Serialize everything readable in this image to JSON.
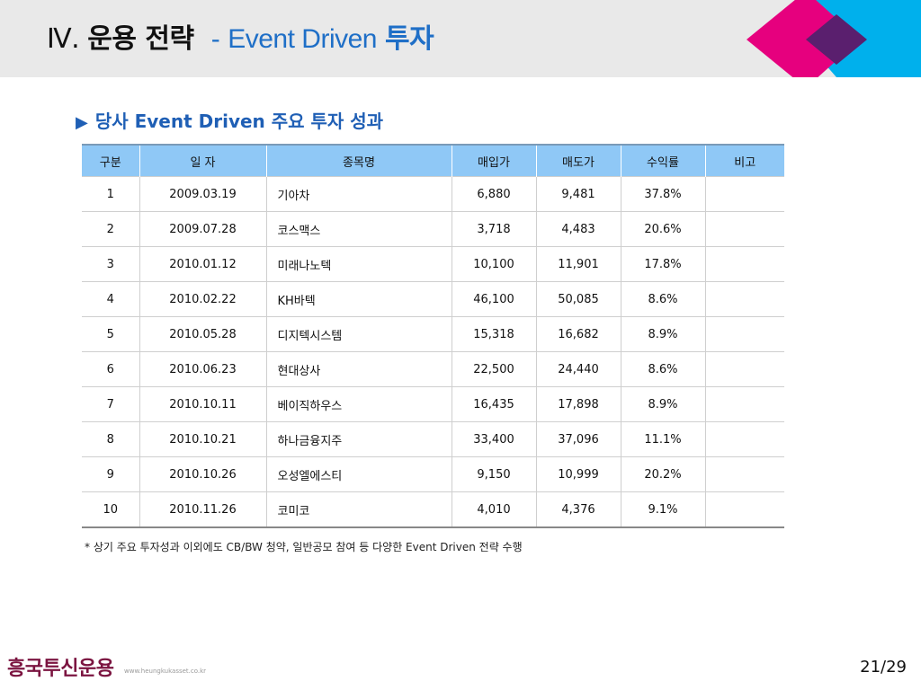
{
  "header": {
    "roman": "Ⅳ.",
    "title_ko": "운용 전략",
    "dash": "-",
    "title_en": "Event Driven",
    "title_ko2": "투자"
  },
  "section": {
    "arrow": "▶",
    "heading": "당사 Event Driven 주요 투자 성과"
  },
  "table": {
    "columns": [
      "구분",
      "일 자",
      "종목명",
      "매입가",
      "매도가",
      "수익률",
      "비고"
    ],
    "rows": [
      {
        "no": "1",
        "date": "2009.03.19",
        "name": "기아차",
        "buy": "6,880",
        "sell": "9,481",
        "ret": "37.8%",
        "note": ""
      },
      {
        "no": "2",
        "date": "2009.07.28",
        "name": "코스맥스",
        "buy": "3,718",
        "sell": "4,483",
        "ret": "20.6%",
        "note": ""
      },
      {
        "no": "3",
        "date": "2010.01.12",
        "name": "미래나노텍",
        "buy": "10,100",
        "sell": "11,901",
        "ret": "17.8%",
        "note": ""
      },
      {
        "no": "4",
        "date": "2010.02.22",
        "name": "KH바텍",
        "buy": "46,100",
        "sell": "50,085",
        "ret": "8.6%",
        "note": ""
      },
      {
        "no": "5",
        "date": "2010.05.28",
        "name": "디지텍시스템",
        "buy": "15,318",
        "sell": "16,682",
        "ret": "8.9%",
        "note": ""
      },
      {
        "no": "6",
        "date": "2010.06.23",
        "name": "현대상사",
        "buy": "22,500",
        "sell": "24,440",
        "ret": "8.6%",
        "note": ""
      },
      {
        "no": "7",
        "date": "2010.10.11",
        "name": "베이직하우스",
        "buy": "16,435",
        "sell": "17,898",
        "ret": "8.9%",
        "note": ""
      },
      {
        "no": "8",
        "date": "2010.10.21",
        "name": "하나금융지주",
        "buy": "33,400",
        "sell": "37,096",
        "ret": "11.1%",
        "note": ""
      },
      {
        "no": "9",
        "date": "2010.10.26",
        "name": "오성엘에스티",
        "buy": "9,150",
        "sell": "10,999",
        "ret": "20.2%",
        "note": ""
      },
      {
        "no": "10",
        "date": "2010.11.26",
        "name": "코미코",
        "buy": "4,010",
        "sell": "4,376",
        "ret": "9.1%",
        "note": ""
      }
    ]
  },
  "footnote": "* 상기 주요 투자성과 이외에도 CB/BW 청약, 일반공모 참여 등 다양한 Event Driven 전략 수행",
  "footer": {
    "logo": "흥국투신운용",
    "site": "www.heungkukasset.co.kr",
    "page": "21/29"
  },
  "colors": {
    "header_bg": "#e9e9e9",
    "accent_blue": "#1f6fc7",
    "table_header": "#8fc8f6",
    "deco_cyan": "#00b0ec",
    "deco_magenta": "#e6007e",
    "deco_purple": "#5a1f6e",
    "logo": "#7b1440"
  }
}
